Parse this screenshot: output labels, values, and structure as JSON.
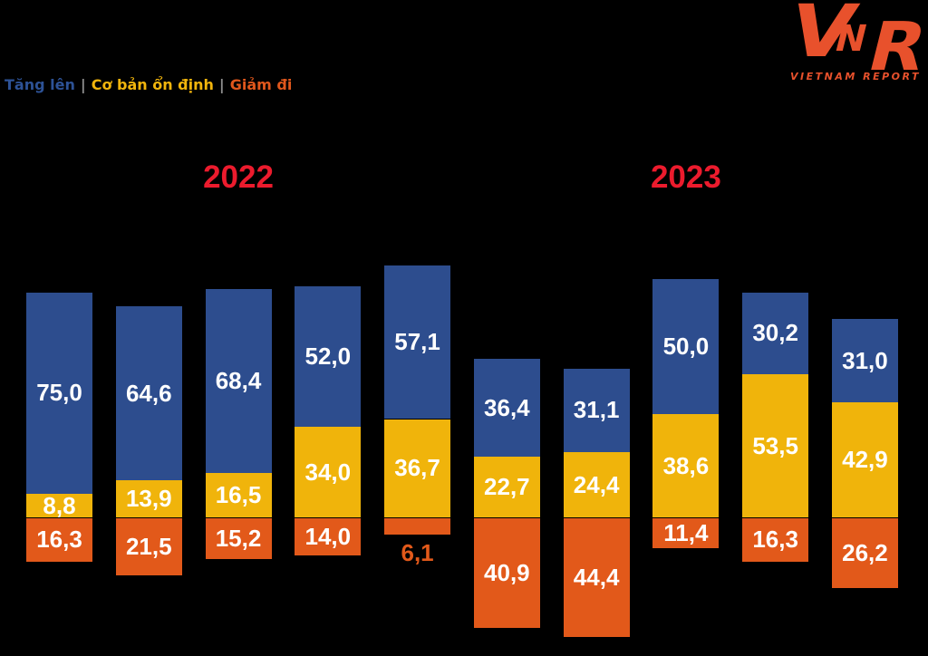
{
  "legend": {
    "items": [
      {
        "label": "Tăng lên",
        "color": "#2d5296"
      },
      {
        "label": "Cơ bản ổn định",
        "color": "#f2b50c"
      },
      {
        "label": "Giảm đi",
        "color": "#e0571c"
      }
    ],
    "separator": "|"
  },
  "logo": {
    "letters": [
      "V",
      "N",
      "R"
    ],
    "text": "VIETNAM REPORT",
    "color": "#e8512c"
  },
  "chart_data": {
    "type": "diverging-stacked-bar",
    "unit": "%",
    "group_labels": [
      {
        "label": "2022"
      },
      {
        "label": "2023"
      }
    ],
    "year_color": "#ec1b2d",
    "legend_position": "top-left",
    "baseline": "between stable and down segments",
    "series": [
      {
        "name": "Tăng lên",
        "key": "up",
        "color": "#2d4d8e"
      },
      {
        "name": "Cơ bản ổn định",
        "key": "stable",
        "color": "#f0b40b"
      },
      {
        "name": "Giảm đi",
        "key": "down",
        "color": "#e2591a"
      }
    ],
    "bars": [
      {
        "group": "2022",
        "up": "75,0",
        "stable": "8,8",
        "down": "16,3"
      },
      {
        "group": "2022",
        "up": "64,6",
        "stable": "13,9",
        "down": "21,5"
      },
      {
        "group": "2022",
        "up": "68,4",
        "stable": "16,5",
        "down": "15,2"
      },
      {
        "group": "2022",
        "up": "52,0",
        "stable": "34,0",
        "down": "14,0"
      },
      {
        "group": "2022",
        "up": "57,1",
        "stable": "36,7",
        "down": "6,1",
        "down_label_outside": true
      },
      {
        "group": "2023",
        "up": "36,4",
        "stable": "22,7",
        "down": "40,9"
      },
      {
        "group": "2023",
        "up": "31,1",
        "stable": "24,4",
        "down": "44,4"
      },
      {
        "group": "2023",
        "up": "50,0",
        "stable": "38,6",
        "down": "11,4"
      },
      {
        "group": "2023",
        "up": "30,2",
        "stable": "53,5",
        "down": "16,3"
      },
      {
        "group": "2023",
        "up": "31,0",
        "stable": "42,9",
        "down": "26,2"
      }
    ]
  }
}
